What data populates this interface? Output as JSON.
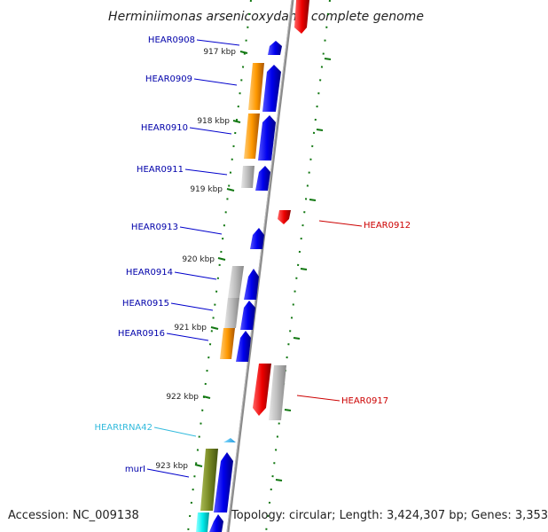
{
  "title": "Herminiimonas arsenicoxydans, complete genome",
  "footer": {
    "accession": "Accession: NC_009138",
    "topology": "Topology: circular; Length: 3,424,307 bp; Genes: 3,353"
  },
  "colors": {
    "forward_cds": "#0000ee",
    "reverse_cds": "#ee0000",
    "rna": "#33bbee",
    "cog_orange": "#ff9900",
    "cog_gray": "#bbbbbb",
    "cog_olive": "#778822",
    "cog_cyan": "#00eeee",
    "ticks": "#117711",
    "backbone": "#888888"
  },
  "kbp_labels": [
    "917 kbp",
    "918 kbp",
    "919 kbp",
    "920 kbp",
    "921 kbp",
    "922 kbp",
    "923 kbp"
  ],
  "genes_forward": [
    {
      "label": "HEAR0908",
      "color": "#0000aa"
    },
    {
      "label": "HEAR0909",
      "color": "#0000aa"
    },
    {
      "label": "HEAR0910",
      "color": "#0000aa"
    },
    {
      "label": "HEAR0911",
      "color": "#0000aa"
    },
    {
      "label": "HEAR0913",
      "color": "#0000aa"
    },
    {
      "label": "HEAR0914",
      "color": "#0000aa"
    },
    {
      "label": "HEAR0915",
      "color": "#0000aa"
    },
    {
      "label": "HEAR0916",
      "color": "#0000aa"
    },
    {
      "label": "HEARtRNA42",
      "color": "#33bbdd"
    },
    {
      "label": "murI",
      "color": "#0000aa"
    }
  ],
  "genes_reverse": [
    {
      "label": "HEAR0912",
      "color": "#cc0000"
    },
    {
      "label": "HEAR0917",
      "color": "#cc0000"
    }
  ]
}
